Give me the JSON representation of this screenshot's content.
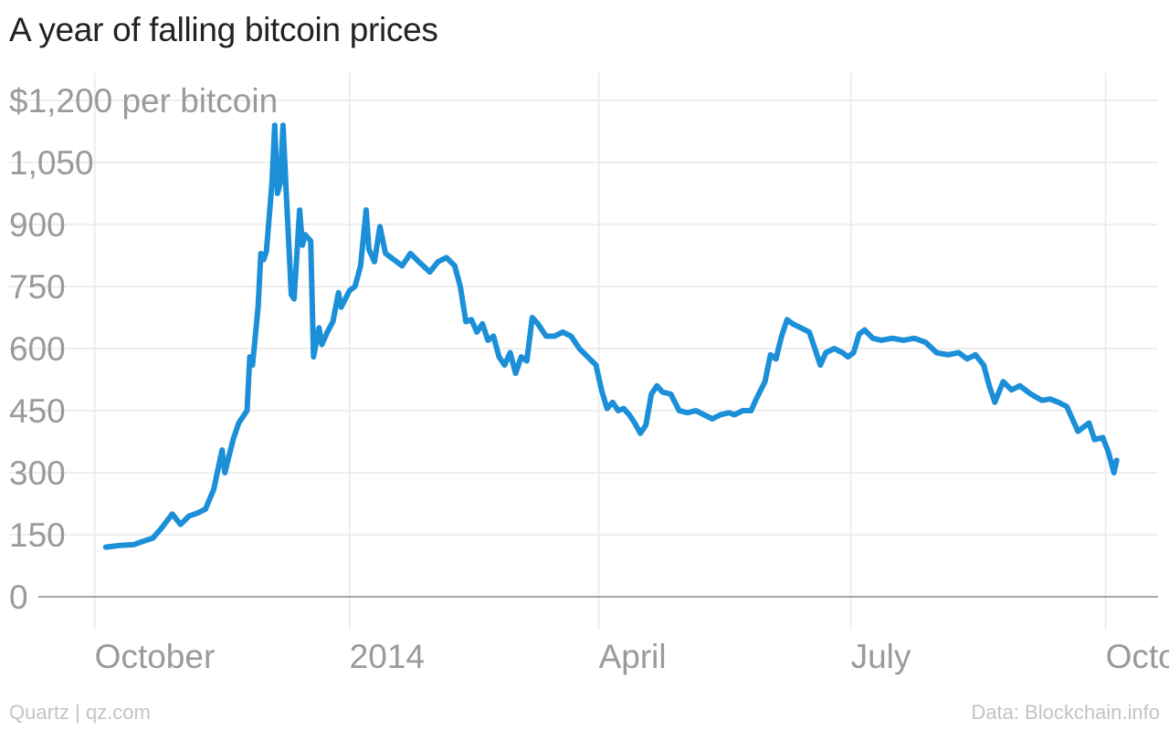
{
  "title": "A year of falling bitcoin prices",
  "footer": {
    "source_left": "Quartz | qz.com",
    "source_right": "Data: Blockchain.info"
  },
  "colors": {
    "line": "#1b8fd8",
    "grid": "#e8e8e8",
    "axis": "#888888",
    "tick_text": "#9a9a9a"
  },
  "chart_data": {
    "type": "line",
    "title": "A year of falling bitcoin prices",
    "ylabel": "per bitcoin",
    "ytick_labels": [
      "0",
      "150",
      "300",
      "450",
      "600",
      "750",
      "900",
      "1,050",
      "$1,200 per bitcoin"
    ],
    "yticks": [
      0,
      150,
      300,
      450,
      600,
      750,
      900,
      1050,
      1200
    ],
    "ylim": [
      0,
      1200
    ],
    "xlim": [
      "2013-09-10",
      "2014-10-14"
    ],
    "xticks": [
      {
        "label": "October",
        "date": "2013-10-01"
      },
      {
        "label": "2014",
        "date": "2014-01-01"
      },
      {
        "label": "April",
        "date": "2014-04-01"
      },
      {
        "label": "July",
        "date": "2014-07-01"
      },
      {
        "label": "October",
        "date": "2014-10-01"
      }
    ],
    "grid": true,
    "series": [
      {
        "points": [
          [
            "2013-10-05",
            120
          ],
          [
            "2013-10-10",
            124
          ],
          [
            "2013-10-15",
            126
          ],
          [
            "2013-10-18",
            133
          ],
          [
            "2013-10-22",
            142
          ],
          [
            "2013-10-25",
            165
          ],
          [
            "2013-10-29",
            200
          ],
          [
            "2013-11-01",
            175
          ],
          [
            "2013-11-04",
            195
          ],
          [
            "2013-11-07",
            202
          ],
          [
            "2013-11-10",
            212
          ],
          [
            "2013-11-13",
            260
          ],
          [
            "2013-11-16",
            355
          ],
          [
            "2013-11-17",
            300
          ],
          [
            "2013-11-20",
            380
          ],
          [
            "2013-11-22",
            420
          ],
          [
            "2013-11-25",
            450
          ],
          [
            "2013-11-26",
            580
          ],
          [
            "2013-11-27",
            560
          ],
          [
            "2013-11-29",
            700
          ],
          [
            "2013-11-30",
            830
          ],
          [
            "2013-12-01",
            815
          ],
          [
            "2013-12-02",
            835
          ],
          [
            "2013-12-04",
            1000
          ],
          [
            "2013-12-05",
            1140
          ],
          [
            "2013-12-06",
            975
          ],
          [
            "2013-12-07",
            1000
          ],
          [
            "2013-12-08",
            1140
          ],
          [
            "2013-12-09",
            1000
          ],
          [
            "2013-12-11",
            730
          ],
          [
            "2013-12-12",
            720
          ],
          [
            "2013-12-14",
            935
          ],
          [
            "2013-12-15",
            850
          ],
          [
            "2013-12-16",
            875
          ],
          [
            "2013-12-18",
            860
          ],
          [
            "2013-12-19",
            580
          ],
          [
            "2013-12-21",
            650
          ],
          [
            "2013-12-22",
            610
          ],
          [
            "2013-12-24",
            640
          ],
          [
            "2013-12-26",
            665
          ],
          [
            "2013-12-28",
            735
          ],
          [
            "2013-12-29",
            700
          ],
          [
            "2014-01-01",
            740
          ],
          [
            "2014-01-03",
            750
          ],
          [
            "2014-01-05",
            800
          ],
          [
            "2014-01-07",
            935
          ],
          [
            "2014-01-08",
            840
          ],
          [
            "2014-01-10",
            810
          ],
          [
            "2014-01-12",
            895
          ],
          [
            "2014-01-14",
            830
          ],
          [
            "2014-01-17",
            815
          ],
          [
            "2014-01-20",
            800
          ],
          [
            "2014-01-23",
            830
          ],
          [
            "2014-01-26",
            810
          ],
          [
            "2014-01-30",
            785
          ],
          [
            "2014-02-02",
            810
          ],
          [
            "2014-02-05",
            820
          ],
          [
            "2014-02-08",
            800
          ],
          [
            "2014-02-10",
            750
          ],
          [
            "2014-02-12",
            665
          ],
          [
            "2014-02-14",
            670
          ],
          [
            "2014-02-16",
            640
          ],
          [
            "2014-02-18",
            660
          ],
          [
            "2014-02-20",
            620
          ],
          [
            "2014-02-22",
            630
          ],
          [
            "2014-02-24",
            580
          ],
          [
            "2014-02-26",
            560
          ],
          [
            "2014-02-28",
            590
          ],
          [
            "2014-03-02",
            540
          ],
          [
            "2014-03-04",
            580
          ],
          [
            "2014-03-06",
            570
          ],
          [
            "2014-03-08",
            675
          ],
          [
            "2014-03-10",
            660
          ],
          [
            "2014-03-13",
            630
          ],
          [
            "2014-03-16",
            630
          ],
          [
            "2014-03-19",
            640
          ],
          [
            "2014-03-22",
            630
          ],
          [
            "2014-03-25",
            600
          ],
          [
            "2014-03-28",
            580
          ],
          [
            "2014-03-31",
            560
          ],
          [
            "2014-04-02",
            500
          ],
          [
            "2014-04-04",
            455
          ],
          [
            "2014-04-06",
            470
          ],
          [
            "2014-04-08",
            450
          ],
          [
            "2014-04-10",
            455
          ],
          [
            "2014-04-12",
            440
          ],
          [
            "2014-04-14",
            420
          ],
          [
            "2014-04-16",
            395
          ],
          [
            "2014-04-18",
            415
          ],
          [
            "2014-04-20",
            490
          ],
          [
            "2014-04-22",
            510
          ],
          [
            "2014-04-24",
            495
          ],
          [
            "2014-04-27",
            490
          ],
          [
            "2014-04-30",
            450
          ],
          [
            "2014-05-03",
            445
          ],
          [
            "2014-05-06",
            450
          ],
          [
            "2014-05-09",
            440
          ],
          [
            "2014-05-12",
            430
          ],
          [
            "2014-05-15",
            440
          ],
          [
            "2014-05-18",
            445
          ],
          [
            "2014-05-20",
            440
          ],
          [
            "2014-05-23",
            450
          ],
          [
            "2014-05-26",
            450
          ],
          [
            "2014-05-28",
            480
          ],
          [
            "2014-05-31",
            520
          ],
          [
            "2014-06-02",
            585
          ],
          [
            "2014-06-04",
            575
          ],
          [
            "2014-06-06",
            630
          ],
          [
            "2014-06-08",
            670
          ],
          [
            "2014-06-10",
            660
          ],
          [
            "2014-06-13",
            650
          ],
          [
            "2014-06-16",
            640
          ],
          [
            "2014-06-18",
            600
          ],
          [
            "2014-06-20",
            560
          ],
          [
            "2014-06-22",
            590
          ],
          [
            "2014-06-25",
            600
          ],
          [
            "2014-06-28",
            590
          ],
          [
            "2014-06-30",
            580
          ],
          [
            "2014-07-02",
            590
          ],
          [
            "2014-07-04",
            635
          ],
          [
            "2014-07-06",
            645
          ],
          [
            "2014-07-09",
            625
          ],
          [
            "2014-07-12",
            620
          ],
          [
            "2014-07-16",
            625
          ],
          [
            "2014-07-20",
            620
          ],
          [
            "2014-07-24",
            625
          ],
          [
            "2014-07-28",
            615
          ],
          [
            "2014-08-01",
            590
          ],
          [
            "2014-08-05",
            585
          ],
          [
            "2014-08-09",
            590
          ],
          [
            "2014-08-12",
            575
          ],
          [
            "2014-08-15",
            585
          ],
          [
            "2014-08-18",
            560
          ],
          [
            "2014-08-20",
            510
          ],
          [
            "2014-08-22",
            470
          ],
          [
            "2014-08-25",
            520
          ],
          [
            "2014-08-28",
            500
          ],
          [
            "2014-08-31",
            510
          ],
          [
            "2014-09-04",
            490
          ],
          [
            "2014-09-08",
            475
          ],
          [
            "2014-09-11",
            478
          ],
          [
            "2014-09-14",
            470
          ],
          [
            "2014-09-17",
            460
          ],
          [
            "2014-09-19",
            430
          ],
          [
            "2014-09-21",
            400
          ],
          [
            "2014-09-23",
            410
          ],
          [
            "2014-09-25",
            420
          ],
          [
            "2014-09-27",
            380
          ],
          [
            "2014-09-30",
            385
          ],
          [
            "2014-10-02",
            350
          ],
          [
            "2014-10-04",
            300
          ],
          [
            "2014-10-05",
            330
          ]
        ]
      }
    ]
  }
}
